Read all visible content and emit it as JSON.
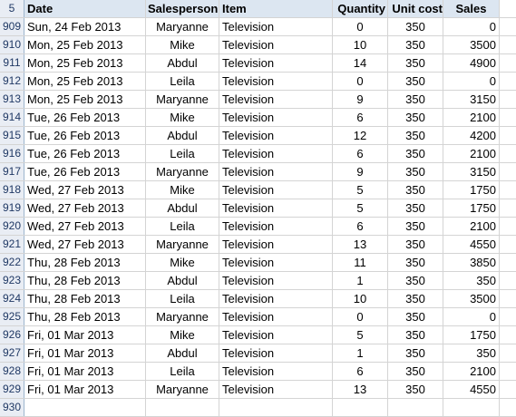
{
  "header": {
    "row_number": "5",
    "columns": [
      "Date",
      "Salesperson",
      "Item",
      "Quantity",
      "Unit cost",
      "Sales"
    ]
  },
  "rows": [
    {
      "n": "909",
      "date": "Sun, 24 Feb 2013",
      "sp": "Maryanne",
      "item": "Television",
      "qty": "0",
      "uc": "350",
      "sales": "0"
    },
    {
      "n": "910",
      "date": "Mon, 25 Feb 2013",
      "sp": "Mike",
      "item": "Television",
      "qty": "10",
      "uc": "350",
      "sales": "3500"
    },
    {
      "n": "911",
      "date": "Mon, 25 Feb 2013",
      "sp": "Abdul",
      "item": "Television",
      "qty": "14",
      "uc": "350",
      "sales": "4900"
    },
    {
      "n": "912",
      "date": "Mon, 25 Feb 2013",
      "sp": "Leila",
      "item": "Television",
      "qty": "0",
      "uc": "350",
      "sales": "0"
    },
    {
      "n": "913",
      "date": "Mon, 25 Feb 2013",
      "sp": "Maryanne",
      "item": "Television",
      "qty": "9",
      "uc": "350",
      "sales": "3150"
    },
    {
      "n": "914",
      "date": "Tue, 26 Feb 2013",
      "sp": "Mike",
      "item": "Television",
      "qty": "6",
      "uc": "350",
      "sales": "2100"
    },
    {
      "n": "915",
      "date": "Tue, 26 Feb 2013",
      "sp": "Abdul",
      "item": "Television",
      "qty": "12",
      "uc": "350",
      "sales": "4200"
    },
    {
      "n": "916",
      "date": "Tue, 26 Feb 2013",
      "sp": "Leila",
      "item": "Television",
      "qty": "6",
      "uc": "350",
      "sales": "2100"
    },
    {
      "n": "917",
      "date": "Tue, 26 Feb 2013",
      "sp": "Maryanne",
      "item": "Television",
      "qty": "9",
      "uc": "350",
      "sales": "3150"
    },
    {
      "n": "918",
      "date": "Wed, 27 Feb 2013",
      "sp": "Mike",
      "item": "Television",
      "qty": "5",
      "uc": "350",
      "sales": "1750"
    },
    {
      "n": "919",
      "date": "Wed, 27 Feb 2013",
      "sp": "Abdul",
      "item": "Television",
      "qty": "5",
      "uc": "350",
      "sales": "1750"
    },
    {
      "n": "920",
      "date": "Wed, 27 Feb 2013",
      "sp": "Leila",
      "item": "Television",
      "qty": "6",
      "uc": "350",
      "sales": "2100"
    },
    {
      "n": "921",
      "date": "Wed, 27 Feb 2013",
      "sp": "Maryanne",
      "item": "Television",
      "qty": "13",
      "uc": "350",
      "sales": "4550"
    },
    {
      "n": "922",
      "date": "Thu, 28 Feb 2013",
      "sp": "Mike",
      "item": "Television",
      "qty": "11",
      "uc": "350",
      "sales": "3850"
    },
    {
      "n": "923",
      "date": "Thu, 28 Feb 2013",
      "sp": "Abdul",
      "item": "Television",
      "qty": "1",
      "uc": "350",
      "sales": "350"
    },
    {
      "n": "924",
      "date": "Thu, 28 Feb 2013",
      "sp": "Leila",
      "item": "Television",
      "qty": "10",
      "uc": "350",
      "sales": "3500"
    },
    {
      "n": "925",
      "date": "Thu, 28 Feb 2013",
      "sp": "Maryanne",
      "item": "Television",
      "qty": "0",
      "uc": "350",
      "sales": "0"
    },
    {
      "n": "926",
      "date": "Fri, 01 Mar 2013",
      "sp": "Mike",
      "item": "Television",
      "qty": "5",
      "uc": "350",
      "sales": "1750"
    },
    {
      "n": "927",
      "date": "Fri, 01 Mar 2013",
      "sp": "Abdul",
      "item": "Television",
      "qty": "1",
      "uc": "350",
      "sales": "350"
    },
    {
      "n": "928",
      "date": "Fri, 01 Mar 2013",
      "sp": "Leila",
      "item": "Television",
      "qty": "6",
      "uc": "350",
      "sales": "2100"
    },
    {
      "n": "929",
      "date": "Fri, 01 Mar 2013",
      "sp": "Maryanne",
      "item": "Television",
      "qty": "13",
      "uc": "350",
      "sales": "4550"
    }
  ],
  "trailing_row_number": "930"
}
